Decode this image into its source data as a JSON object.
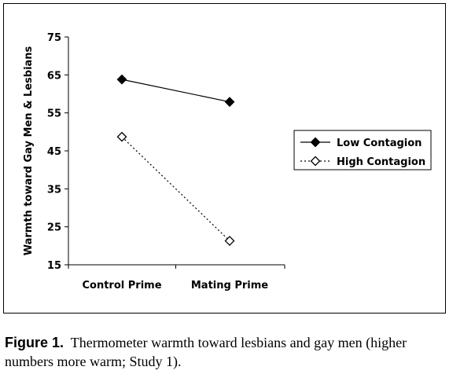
{
  "chart_data": {
    "type": "line",
    "categories": [
      "Control Prime",
      "Mating Prime"
    ],
    "series": [
      {
        "name": "Low Contagion",
        "values": [
          63.8,
          57.9
        ],
        "line": "solid",
        "marker": "filled-diamond",
        "color": "#000000"
      },
      {
        "name": "High Contagion",
        "values": [
          48.7,
          21.3
        ],
        "line": "dotted",
        "marker": "open-diamond",
        "color": "#000000"
      }
    ],
    "ylabel": "Warmth toward Gay Men & Lesbians",
    "xlabel": "",
    "ylim": [
      15,
      75
    ],
    "yticks": [
      15,
      25,
      35,
      45,
      55,
      65,
      75
    ],
    "grid": false,
    "legend_position": "right"
  },
  "caption": {
    "label": "Figure 1.",
    "text": "Thermometer warmth toward lesbians and gay men (higher numbers more warm; Study 1)."
  }
}
